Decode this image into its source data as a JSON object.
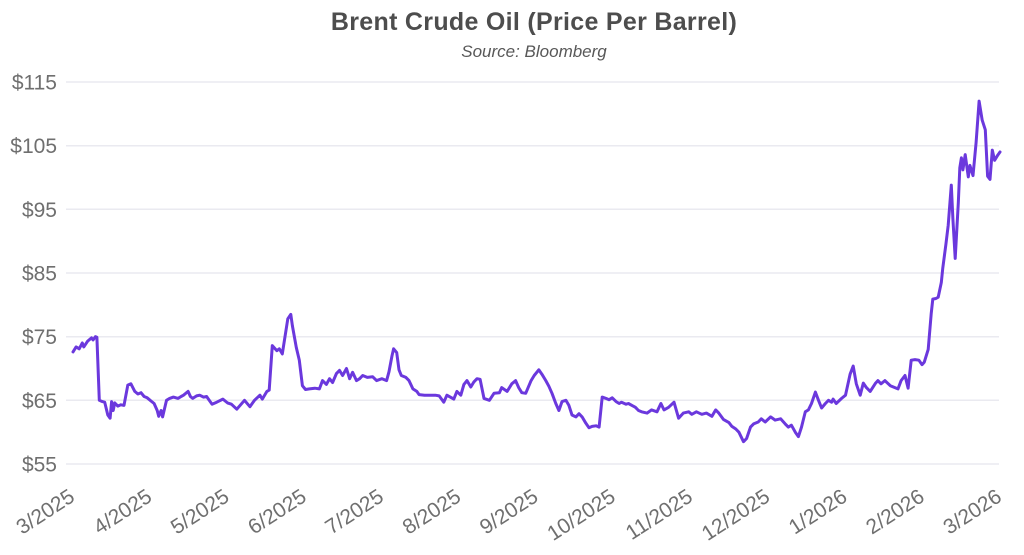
{
  "chart": {
    "title": "Brent Crude Oil (Price Per Barrel)",
    "subtitle": "Source: Bloomberg"
  },
  "colors": {
    "line": "#6b38dd",
    "grid": "#eaeaf0",
    "axis_label": "#6f6f6f",
    "title": "#4d4d4d",
    "subtitle": "#585858",
    "background": "#ffffff"
  },
  "chart_data": {
    "type": "line",
    "title": "Brent Crude Oil (Price Per Barrel)",
    "subtitle": "Source: Bloomberg",
    "xlabel": "",
    "ylabel": "",
    "legend": "none",
    "grid": "horizontal",
    "ylim": [
      55,
      115
    ],
    "y_tick_values": [
      115,
      105,
      95,
      85,
      75,
      65,
      55
    ],
    "y_tick_labels": [
      "$115",
      "$105",
      "$95",
      "$85",
      "$75",
      "$65",
      "$55"
    ],
    "x_tick_labels": [
      "3/2025",
      "4/2025",
      "5/2025",
      "6/2025",
      "7/2025",
      "8/2025",
      "9/2025",
      "10/2025",
      "11/2025",
      "12/2025",
      "1/2026",
      "2/2026",
      "3/2026"
    ],
    "x_unit": "months after 3/2025 (0 = 3/2025, 12 = 3/2026)",
    "series": [
      {
        "name": "Brent crude oil price (USD per barrel)",
        "color": "#6b38dd",
        "points": [
          [
            0.0,
            72.6
          ],
          [
            0.04,
            73.4
          ],
          [
            0.08,
            73.1
          ],
          [
            0.12,
            74.0
          ],
          [
            0.14,
            73.4
          ],
          [
            0.19,
            74.3
          ],
          [
            0.24,
            74.8
          ],
          [
            0.26,
            74.5
          ],
          [
            0.29,
            75.0
          ],
          [
            0.31,
            74.9
          ],
          [
            0.34,
            65.0
          ],
          [
            0.38,
            64.8
          ],
          [
            0.41,
            64.7
          ],
          [
            0.45,
            62.7
          ],
          [
            0.48,
            62.2
          ],
          [
            0.5,
            64.8
          ],
          [
            0.52,
            63.4
          ],
          [
            0.54,
            64.6
          ],
          [
            0.58,
            64.1
          ],
          [
            0.62,
            64.3
          ],
          [
            0.66,
            64.2
          ],
          [
            0.71,
            67.4
          ],
          [
            0.75,
            67.6
          ],
          [
            0.8,
            66.4
          ],
          [
            0.84,
            66.0
          ],
          [
            0.88,
            66.2
          ],
          [
            0.92,
            65.6
          ],
          [
            0.96,
            65.4
          ],
          [
            1.01,
            64.9
          ],
          [
            1.05,
            64.5
          ],
          [
            1.09,
            63.4
          ],
          [
            1.11,
            62.5
          ],
          [
            1.14,
            63.4
          ],
          [
            1.16,
            62.4
          ],
          [
            1.21,
            65.0
          ],
          [
            1.25,
            65.3
          ],
          [
            1.3,
            65.5
          ],
          [
            1.36,
            65.3
          ],
          [
            1.4,
            65.6
          ],
          [
            1.43,
            65.8
          ],
          [
            1.49,
            66.4
          ],
          [
            1.52,
            65.6
          ],
          [
            1.55,
            65.3
          ],
          [
            1.6,
            65.7
          ],
          [
            1.64,
            65.8
          ],
          [
            1.69,
            65.5
          ],
          [
            1.73,
            65.6
          ],
          [
            1.8,
            64.4
          ],
          [
            1.86,
            64.7
          ],
          [
            1.94,
            65.2
          ],
          [
            2.0,
            64.6
          ],
          [
            2.05,
            64.4
          ],
          [
            2.12,
            63.6
          ],
          [
            2.17,
            64.3
          ],
          [
            2.22,
            65.0
          ],
          [
            2.29,
            64.0
          ],
          [
            2.35,
            65.0
          ],
          [
            2.42,
            65.8
          ],
          [
            2.45,
            65.2
          ],
          [
            2.51,
            66.4
          ],
          [
            2.54,
            66.6
          ],
          [
            2.58,
            73.6
          ],
          [
            2.64,
            72.8
          ],
          [
            2.67,
            73.1
          ],
          [
            2.71,
            72.3
          ],
          [
            2.78,
            77.8
          ],
          [
            2.82,
            78.5
          ],
          [
            2.84,
            76.7
          ],
          [
            2.89,
            73.3
          ],
          [
            2.93,
            71.3
          ],
          [
            2.97,
            67.3
          ],
          [
            3.01,
            66.7
          ],
          [
            3.06,
            66.8
          ],
          [
            3.13,
            66.9
          ],
          [
            3.19,
            66.8
          ],
          [
            3.23,
            68.1
          ],
          [
            3.28,
            67.5
          ],
          [
            3.32,
            68.4
          ],
          [
            3.36,
            67.8
          ],
          [
            3.41,
            69.2
          ],
          [
            3.45,
            69.7
          ],
          [
            3.49,
            68.9
          ],
          [
            3.54,
            70.0
          ],
          [
            3.58,
            68.4
          ],
          [
            3.62,
            69.4
          ],
          [
            3.67,
            68.1
          ],
          [
            3.71,
            68.4
          ],
          [
            3.75,
            68.9
          ],
          [
            3.81,
            68.6
          ],
          [
            3.88,
            68.7
          ],
          [
            3.93,
            68.1
          ],
          [
            4.0,
            68.4
          ],
          [
            4.06,
            68.1
          ],
          [
            4.09,
            69.5
          ],
          [
            4.13,
            72.0
          ],
          [
            4.15,
            73.1
          ],
          [
            4.19,
            72.5
          ],
          [
            4.22,
            69.8
          ],
          [
            4.25,
            68.9
          ],
          [
            4.31,
            68.6
          ],
          [
            4.35,
            68.1
          ],
          [
            4.4,
            66.8
          ],
          [
            4.45,
            66.4
          ],
          [
            4.48,
            65.9
          ],
          [
            4.55,
            65.8
          ],
          [
            4.61,
            65.8
          ],
          [
            4.69,
            65.8
          ],
          [
            4.74,
            65.7
          ],
          [
            4.8,
            64.7
          ],
          [
            4.84,
            65.8
          ],
          [
            4.93,
            65.2
          ],
          [
            4.97,
            66.4
          ],
          [
            5.02,
            65.8
          ],
          [
            5.06,
            67.5
          ],
          [
            5.1,
            68.1
          ],
          [
            5.15,
            67.1
          ],
          [
            5.19,
            67.9
          ],
          [
            5.23,
            68.4
          ],
          [
            5.27,
            68.3
          ],
          [
            5.32,
            65.3
          ],
          [
            5.39,
            65.0
          ],
          [
            5.45,
            66.1
          ],
          [
            5.52,
            66.2
          ],
          [
            5.55,
            67.0
          ],
          [
            5.62,
            66.4
          ],
          [
            5.68,
            67.6
          ],
          [
            5.73,
            68.1
          ],
          [
            5.77,
            67.0
          ],
          [
            5.81,
            66.2
          ],
          [
            5.86,
            66.1
          ],
          [
            5.93,
            68.1
          ],
          [
            5.97,
            68.9
          ],
          [
            6.03,
            69.8
          ],
          [
            6.07,
            69.1
          ],
          [
            6.12,
            68.1
          ],
          [
            6.16,
            67.2
          ],
          [
            6.2,
            66.1
          ],
          [
            6.25,
            64.5
          ],
          [
            6.29,
            63.4
          ],
          [
            6.33,
            64.8
          ],
          [
            6.38,
            65.0
          ],
          [
            6.42,
            64.2
          ],
          [
            6.46,
            62.7
          ],
          [
            6.51,
            62.4
          ],
          [
            6.55,
            62.9
          ],
          [
            6.59,
            62.4
          ],
          [
            6.64,
            61.4
          ],
          [
            6.68,
            60.7
          ],
          [
            6.72,
            60.9
          ],
          [
            6.77,
            61.0
          ],
          [
            6.81,
            60.8
          ],
          [
            6.85,
            65.5
          ],
          [
            6.9,
            65.3
          ],
          [
            6.94,
            65.1
          ],
          [
            6.98,
            65.4
          ],
          [
            7.03,
            64.8
          ],
          [
            7.07,
            64.5
          ],
          [
            7.1,
            64.7
          ],
          [
            7.16,
            64.4
          ],
          [
            7.19,
            64.5
          ],
          [
            7.25,
            64.1
          ],
          [
            7.28,
            63.9
          ],
          [
            7.32,
            63.4
          ],
          [
            7.36,
            63.2
          ],
          [
            7.43,
            63.0
          ],
          [
            7.49,
            63.5
          ],
          [
            7.56,
            63.2
          ],
          [
            7.61,
            64.5
          ],
          [
            7.65,
            63.5
          ],
          [
            7.71,
            63.9
          ],
          [
            7.78,
            64.7
          ],
          [
            7.84,
            62.2
          ],
          [
            7.9,
            63.0
          ],
          [
            7.97,
            63.2
          ],
          [
            8.01,
            62.8
          ],
          [
            8.07,
            63.2
          ],
          [
            8.14,
            62.8
          ],
          [
            8.2,
            63.0
          ],
          [
            8.27,
            62.5
          ],
          [
            8.32,
            63.5
          ],
          [
            8.36,
            63.0
          ],
          [
            8.42,
            62.0
          ],
          [
            8.49,
            61.5
          ],
          [
            8.53,
            60.9
          ],
          [
            8.58,
            60.5
          ],
          [
            8.62,
            60.0
          ],
          [
            8.68,
            58.5
          ],
          [
            8.72,
            59.0
          ],
          [
            8.77,
            60.8
          ],
          [
            8.81,
            61.3
          ],
          [
            8.87,
            61.6
          ],
          [
            8.91,
            62.1
          ],
          [
            8.96,
            61.6
          ],
          [
            9.03,
            62.4
          ],
          [
            9.09,
            61.9
          ],
          [
            9.16,
            62.1
          ],
          [
            9.22,
            61.3
          ],
          [
            9.26,
            60.8
          ],
          [
            9.3,
            61.1
          ],
          [
            9.35,
            60.0
          ],
          [
            9.39,
            59.3
          ],
          [
            9.43,
            60.8
          ],
          [
            9.48,
            63.2
          ],
          [
            9.52,
            63.5
          ],
          [
            9.56,
            64.5
          ],
          [
            9.61,
            66.3
          ],
          [
            9.65,
            65.0
          ],
          [
            9.69,
            63.8
          ],
          [
            9.74,
            64.5
          ],
          [
            9.78,
            65.0
          ],
          [
            9.82,
            64.7
          ],
          [
            9.84,
            65.2
          ],
          [
            9.88,
            64.5
          ],
          [
            9.95,
            65.3
          ],
          [
            10.0,
            65.8
          ],
          [
            10.06,
            69.1
          ],
          [
            10.1,
            70.4
          ],
          [
            10.14,
            67.6
          ],
          [
            10.19,
            65.8
          ],
          [
            10.23,
            67.7
          ],
          [
            10.27,
            67.0
          ],
          [
            10.32,
            66.4
          ],
          [
            10.39,
            67.7
          ],
          [
            10.42,
            68.1
          ],
          [
            10.46,
            67.6
          ],
          [
            10.51,
            68.1
          ],
          [
            10.58,
            67.3
          ],
          [
            10.64,
            67.0
          ],
          [
            10.68,
            66.8
          ],
          [
            10.72,
            68.1
          ],
          [
            10.77,
            68.9
          ],
          [
            10.81,
            66.9
          ],
          [
            10.85,
            71.3
          ],
          [
            10.9,
            71.4
          ],
          [
            10.95,
            71.3
          ],
          [
            10.99,
            70.6
          ],
          [
            11.02,
            71.0
          ],
          [
            11.07,
            73.0
          ],
          [
            11.11,
            78.6
          ],
          [
            11.13,
            80.9
          ],
          [
            11.17,
            81.0
          ],
          [
            11.2,
            81.2
          ],
          [
            11.24,
            83.5
          ],
          [
            11.26,
            85.8
          ],
          [
            11.3,
            89.5
          ],
          [
            11.33,
            92.5
          ],
          [
            11.37,
            98.8
          ],
          [
            11.39,
            93.5
          ],
          [
            11.42,
            87.3
          ],
          [
            11.46,
            96.0
          ],
          [
            11.48,
            101.5
          ],
          [
            11.5,
            103.1
          ],
          [
            11.52,
            101.2
          ],
          [
            11.55,
            103.6
          ],
          [
            11.59,
            100.1
          ],
          [
            11.61,
            101.9
          ],
          [
            11.65,
            100.3
          ],
          [
            11.69,
            105.5
          ],
          [
            11.73,
            112.0
          ],
          [
            11.77,
            109.0
          ],
          [
            11.81,
            107.5
          ],
          [
            11.84,
            100.2
          ],
          [
            11.87,
            99.7
          ],
          [
            11.9,
            104.3
          ],
          [
            11.93,
            102.7
          ],
          [
            11.97,
            103.5
          ],
          [
            12.0,
            104.0
          ]
        ]
      }
    ]
  }
}
